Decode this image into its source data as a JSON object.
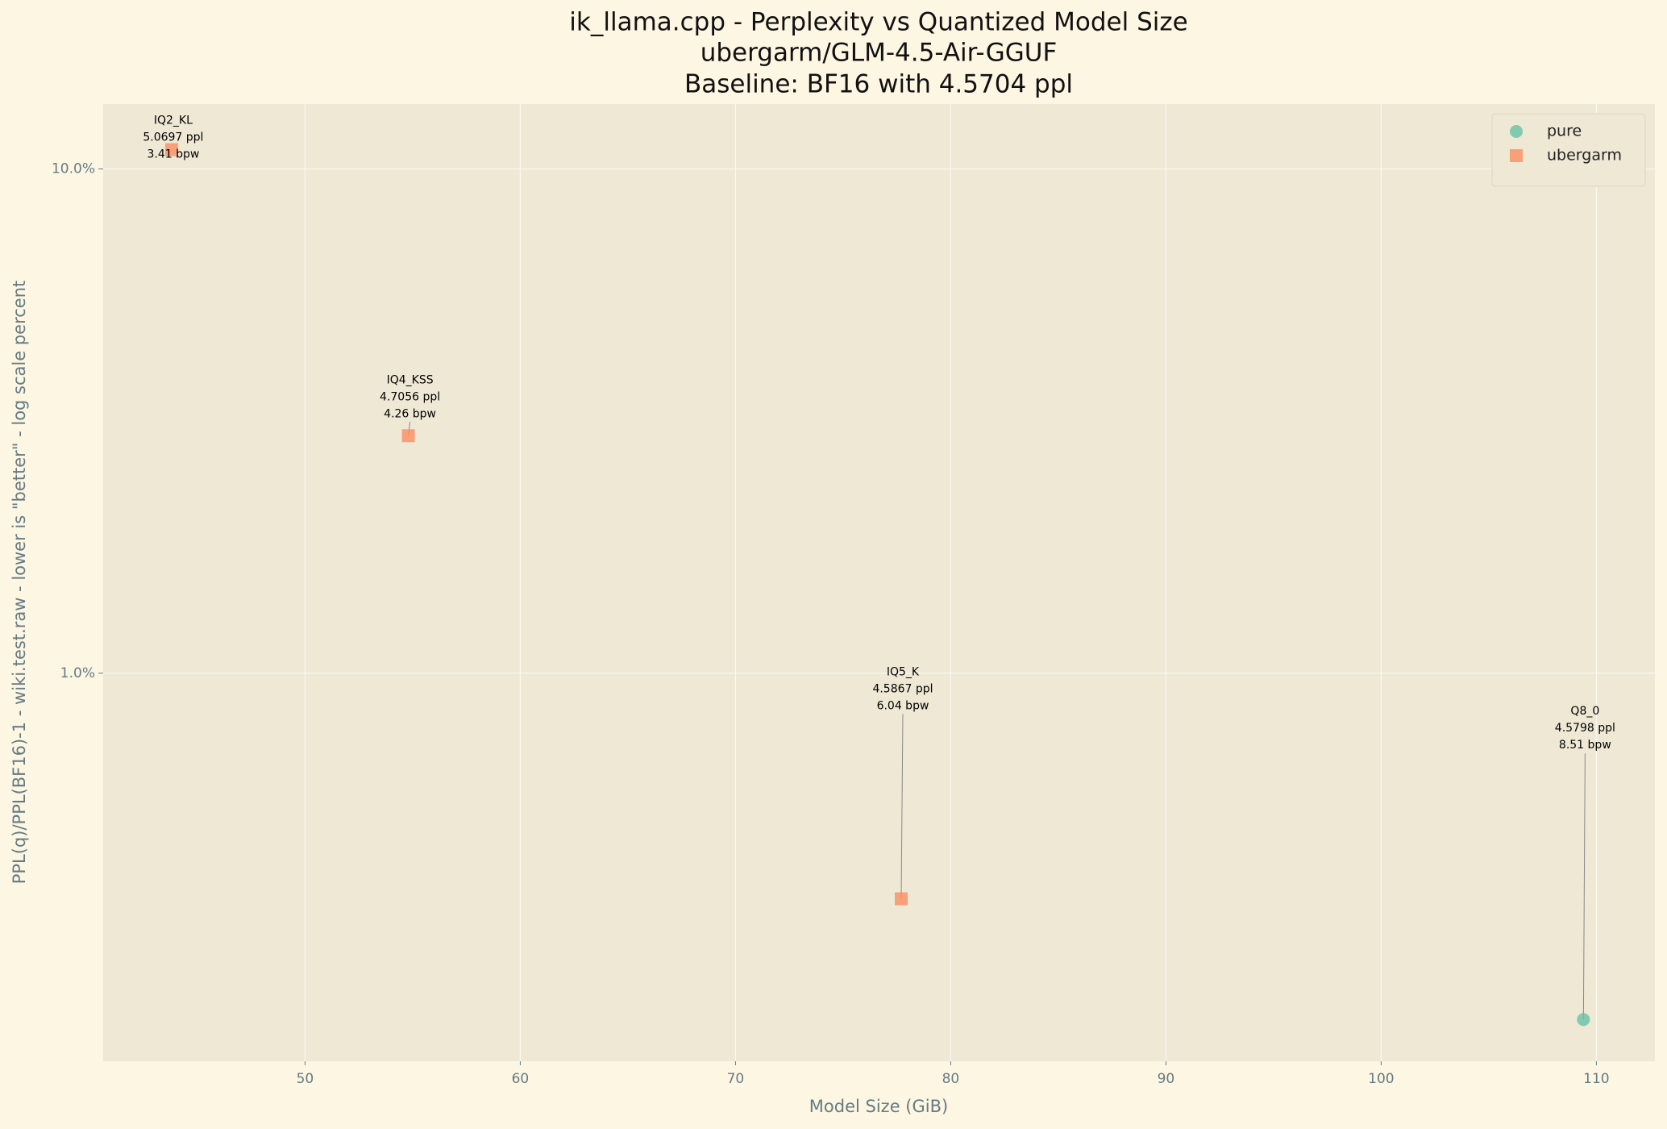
{
  "chart_data": {
    "type": "scatter",
    "title": [
      "ik_llama.cpp - Perplexity vs Quantized Model Size",
      "ubergarm/GLM-4.5-Air-GGUF",
      "Baseline: BF16 with 4.5704 ppl"
    ],
    "x_label": "Model Size (GiB)",
    "y_label": "PPL(q)/PPL(BF16)-1 - wiki.test.raw - lower is \"better\" - log scale percent",
    "xlim": [
      40.62,
      112.72
    ],
    "ylim": [
      0.17,
      13.45
    ],
    "y_scale": "log",
    "xticks": [
      50,
      60,
      70,
      80,
      90,
      100,
      110
    ],
    "yticks": [
      {
        "value": 1,
        "label": "1.0%"
      },
      {
        "value": 10,
        "label": "10.0%"
      }
    ],
    "grid": true,
    "legend": "upper right",
    "series": [
      {
        "name": "pure",
        "color": "#66c2a5",
        "marker": "circle",
        "x": [
          109.4
        ],
        "values": [
          0.2057
        ],
        "labels": [
          [
            "Q8_0",
            "4.5798 ppl",
            "8.51 bpw"
          ]
        ]
      },
      {
        "name": "ubergarm",
        "color": "#fc8d62",
        "marker": "square",
        "x": [
          43.8,
          54.8,
          77.7
        ],
        "values": [
          10.92,
          2.958,
          0.357
        ],
        "labels": [
          [
            "IQ2_KL",
            "5.0697 ppl",
            "3.41 bpw"
          ],
          [
            "IQ4_KSS",
            "4.7056 ppl",
            "4.26 bpw"
          ],
          [
            "IQ5_K",
            "4.5867 ppl",
            "6.04 bpw"
          ]
        ]
      }
    ]
  }
}
